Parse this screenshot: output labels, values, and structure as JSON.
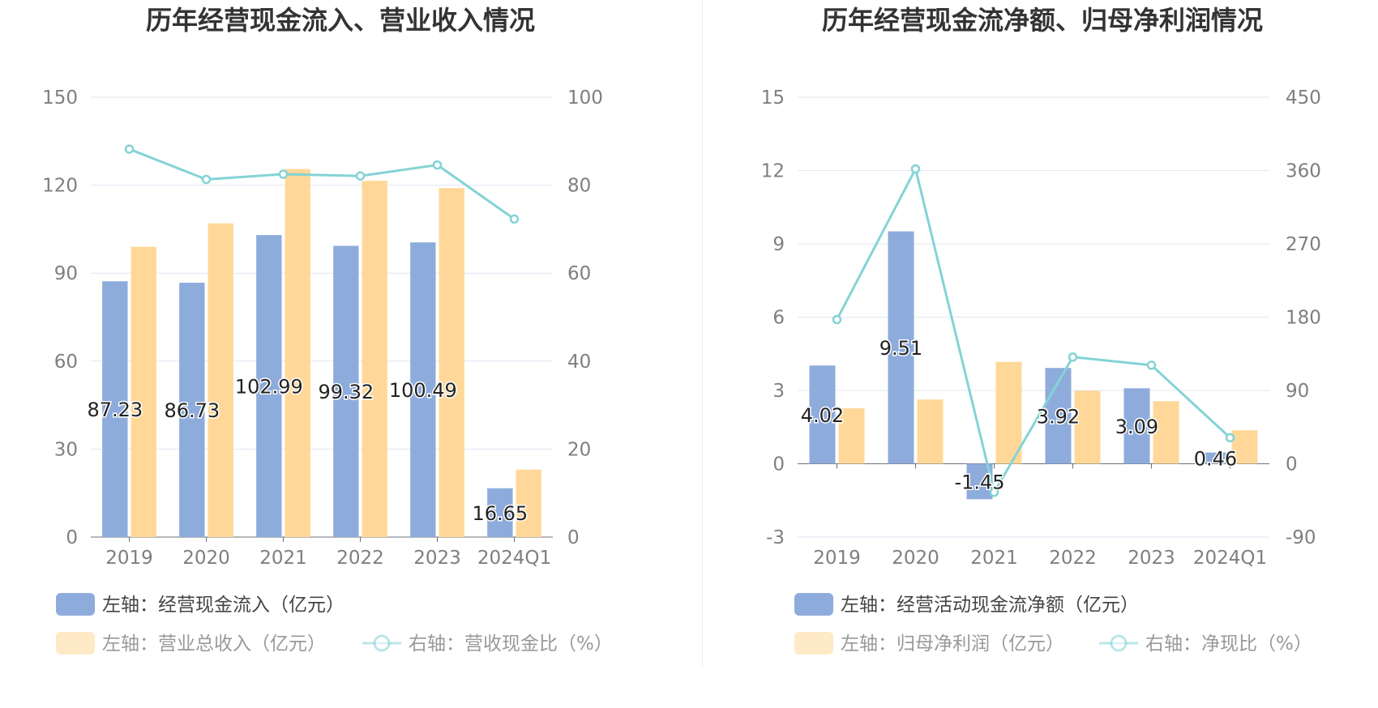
{
  "chart_data": [
    {
      "type": "bar",
      "title": "历年经营现金流入、营业收入情况",
      "categories": [
        "2019",
        "2020",
        "2021",
        "2022",
        "2023",
        "2024Q1"
      ],
      "left_axis": {
        "ticks": [
          "0",
          "30",
          "60",
          "90",
          "120",
          "150"
        ],
        "ylim": [
          0,
          150
        ]
      },
      "right_axis": {
        "ticks": [
          "0",
          "20",
          "40",
          "60",
          "80",
          "100"
        ],
        "ylim": [
          0,
          100
        ]
      },
      "series": [
        {
          "name": "经营现金流入",
          "legend": "左轴：经营现金流入（亿元）",
          "axis": "left",
          "kind": "bar",
          "color": "#8eacdb",
          "values": [
            87.23,
            86.73,
            102.99,
            99.32,
            100.49,
            16.65
          ],
          "labels": [
            "87.23",
            "86.73",
            "102.99",
            "99.32",
            "100.49",
            "16.65"
          ]
        },
        {
          "name": "营业总收入",
          "legend": "左轴：营业总收入（亿元）",
          "axis": "left",
          "kind": "bar",
          "color": "#ffd899",
          "values": [
            99.0,
            107.0,
            125.5,
            121.5,
            119.0,
            23.0
          ]
        },
        {
          "name": "营收现金比",
          "legend": "右轴：营收现金比（%）",
          "axis": "right",
          "kind": "line",
          "color": "#84d3d6",
          "values": [
            88.2,
            81.3,
            82.5,
            82.1,
            84.6,
            72.3
          ]
        }
      ]
    },
    {
      "type": "bar",
      "title": "历年经营现金流净额、归母净利润情况",
      "categories": [
        "2019",
        "2020",
        "2021",
        "2022",
        "2023",
        "2024Q1"
      ],
      "left_axis": {
        "ticks": [
          "-3",
          "0",
          "3",
          "6",
          "9",
          "12",
          "15"
        ],
        "ylim": [
          -3,
          15
        ]
      },
      "right_axis": {
        "ticks": [
          "-90",
          "0",
          "90",
          "180",
          "270",
          "360",
          "450"
        ],
        "ylim": [
          -90,
          450
        ]
      },
      "series": [
        {
          "name": "经营活动现金流净额",
          "legend": "左轴：经营活动现金流净额（亿元）",
          "axis": "left",
          "kind": "bar",
          "color": "#8eacdb",
          "values": [
            4.02,
            9.51,
            -1.45,
            3.92,
            3.09,
            0.46
          ],
          "labels": [
            "4.02",
            "9.51",
            "-1.45",
            "3.92",
            "3.09",
            "0.46"
          ]
        },
        {
          "name": "归母净利润",
          "legend": "左轴：归母净利润（亿元）",
          "axis": "left",
          "kind": "bar",
          "color": "#ffd899",
          "values": [
            2.27,
            2.63,
            4.17,
            2.99,
            2.56,
            1.37
          ]
        },
        {
          "name": "净现比",
          "legend": "右轴：净现比（%）",
          "axis": "right",
          "kind": "line",
          "color": "#84d3d6",
          "values": [
            177,
            362,
            -35,
            131,
            121,
            32
          ]
        }
      ]
    }
  ]
}
